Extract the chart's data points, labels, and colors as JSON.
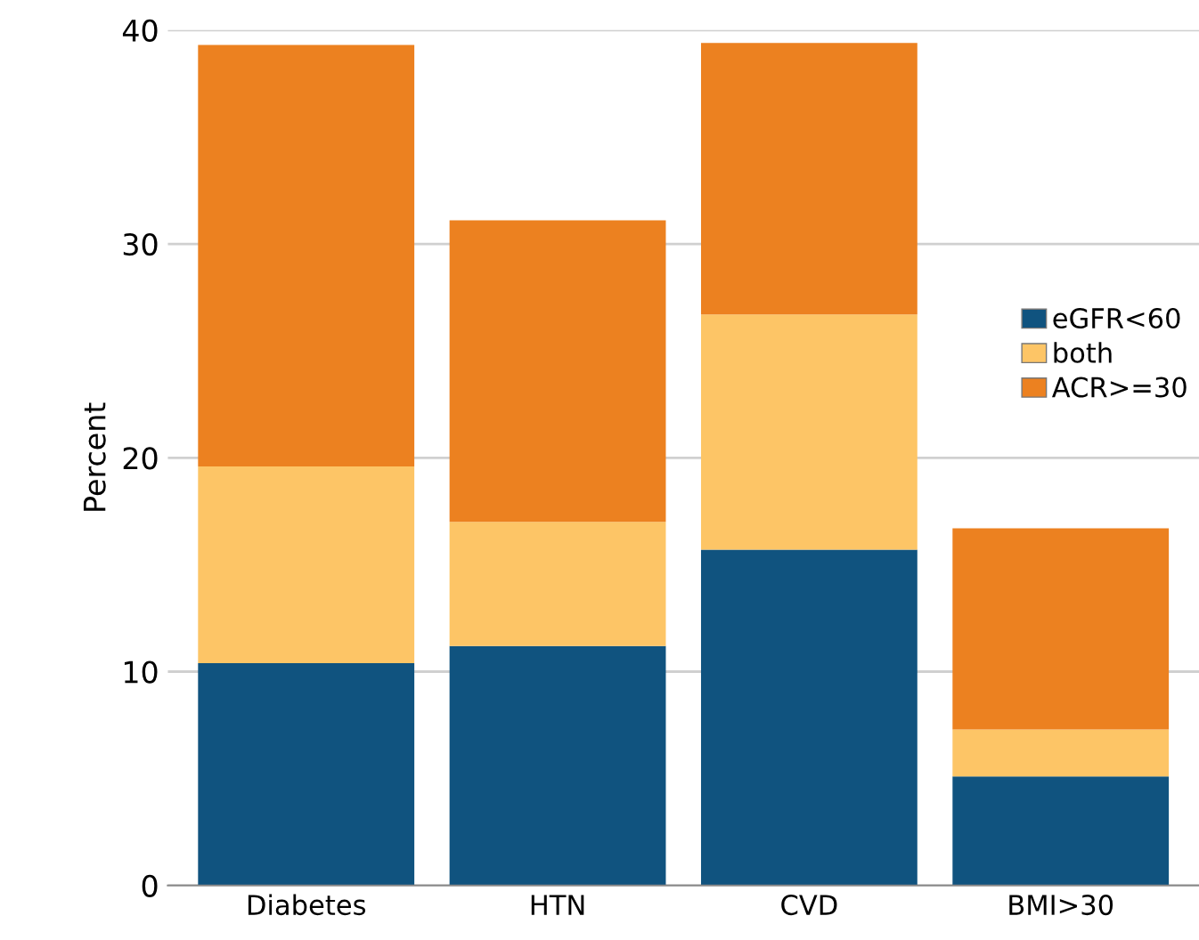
{
  "chart_data": {
    "type": "bar",
    "stacked": true,
    "ylabel": "Percent",
    "categories": [
      "Diabetes",
      "HTN",
      "CVD",
      "BMI>30"
    ],
    "series": [
      {
        "name": "eGFR<60",
        "color": "#10537f",
        "values": [
          10.4,
          11.2,
          15.7,
          5.1
        ]
      },
      {
        "name": "both",
        "color": "#fdc566",
        "values": [
          9.2,
          5.8,
          11.0,
          2.2
        ]
      },
      {
        "name": "ACR>=30",
        "color": "#ec8120",
        "values": [
          19.7,
          14.1,
          12.7,
          9.4
        ]
      }
    ],
    "ylim": [
      0,
      40
    ],
    "yticks": [
      0,
      10,
      20,
      30,
      40
    ],
    "grid": "y",
    "legend": "right"
  }
}
